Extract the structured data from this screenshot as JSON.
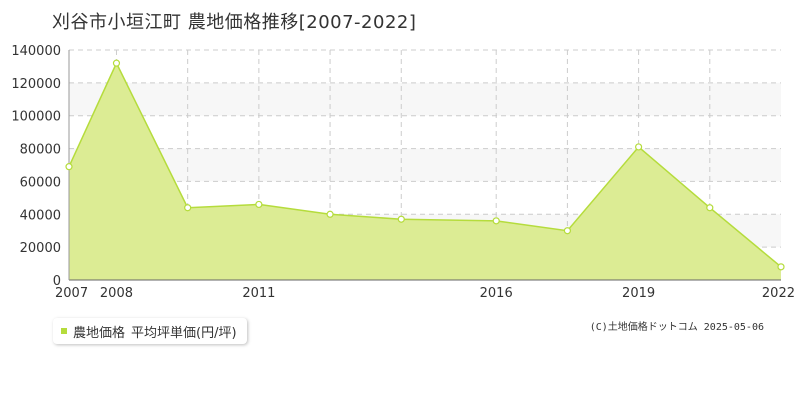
{
  "title": "刈谷市小垣江町 農地価格推移[2007-2022]",
  "legend": {
    "series_label": "農地価格",
    "unit_label": "平均坪単価(円/坪)"
  },
  "copyright": "(C)土地価格ドットコム 2025-05-06",
  "colors": {
    "fill": "#dcec94",
    "line": "#b5dc3c",
    "point_fill": "#ffffff",
    "grid": "#cccccc",
    "plot_band": "#f7f7f7",
    "legend_swatch": "#b5dc3c"
  },
  "chart_data": {
    "type": "area",
    "title": "刈谷市小垣江町 農地価格推移[2007-2022]",
    "xlabel": "",
    "ylabel": "",
    "xlim": [
      2007,
      2022
    ],
    "ylim": [
      0,
      140000
    ],
    "y_ticks": [
      0,
      20000,
      40000,
      60000,
      80000,
      100000,
      120000,
      140000
    ],
    "y_tick_labels": [
      "0",
      "20000",
      "40000",
      "60000",
      "80000",
      "100000",
      "120000",
      "140000"
    ],
    "x_ticks": [
      2007,
      2008,
      2011,
      2016,
      2019,
      2022
    ],
    "x_tick_labels": [
      "2007",
      "2008",
      "2011",
      "2016",
      "2019",
      "2022"
    ],
    "x_gridlines": [
      2008,
      2009.5,
      2011,
      2012.5,
      2014,
      2016,
      2017.5,
      2019,
      2020.5
    ],
    "grid": true,
    "legend_position": "bottom-left",
    "series": [
      {
        "name": "農地価格",
        "x": [
          2007,
          2008,
          2009.5,
          2011,
          2012.5,
          2014,
          2016,
          2017.5,
          2019,
          2020.5,
          2022
        ],
        "values": [
          69000,
          132000,
          44000,
          46000,
          40000,
          37000,
          36000,
          30000,
          81000,
          44000,
          8000
        ]
      }
    ]
  }
}
